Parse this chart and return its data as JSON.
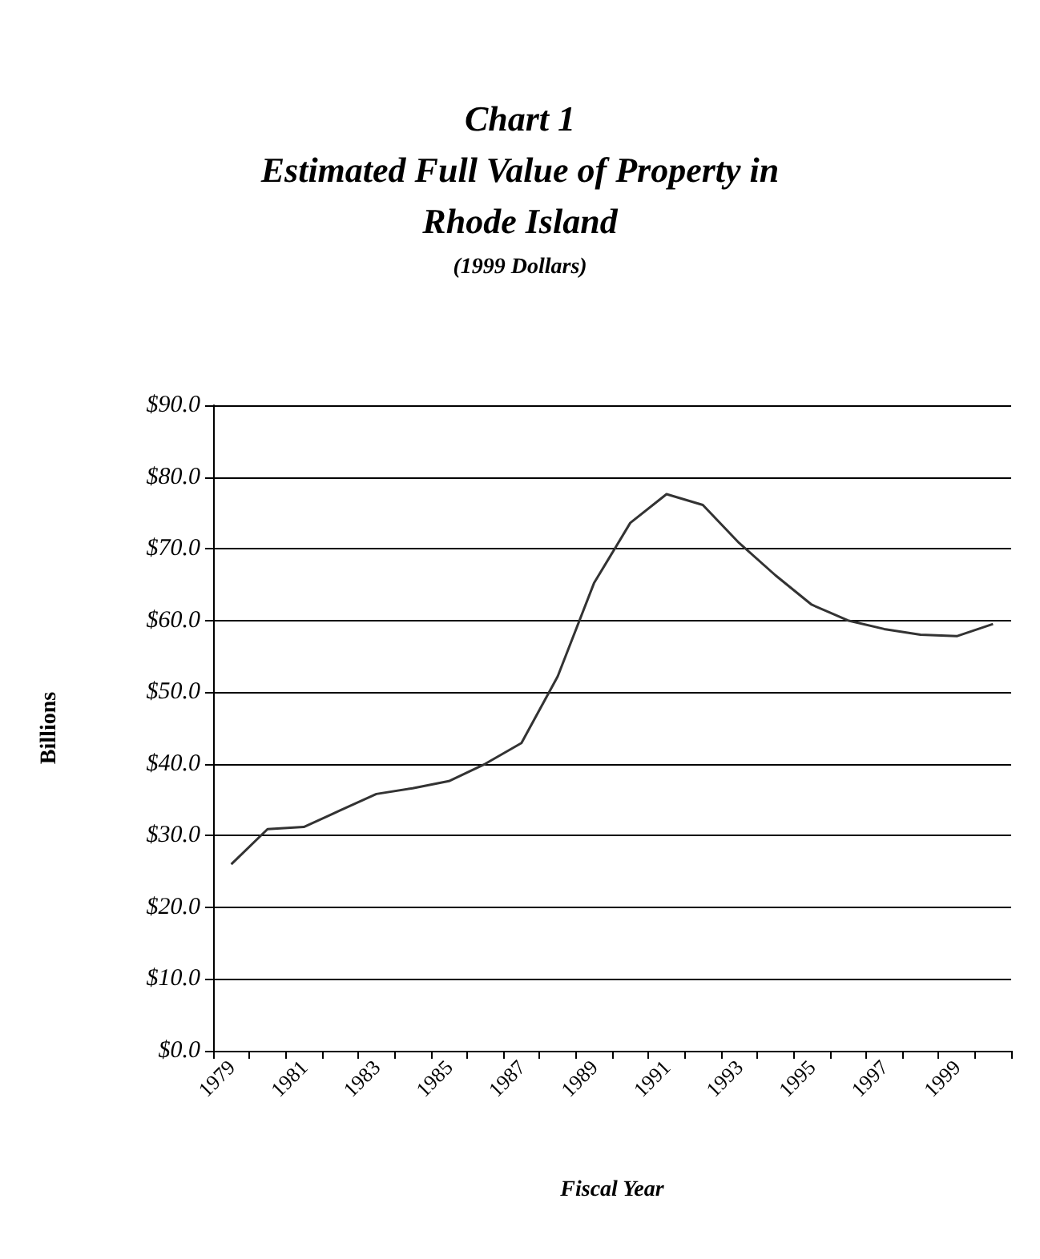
{
  "chart_data": {
    "type": "line",
    "title": "Chart 1\nEstimated Full Value of Property in\nRhode Island",
    "subtitle": "(1999 Dollars)",
    "xlabel": "Fiscal Year",
    "ylabel": "Billions",
    "categories": [
      "1979",
      null,
      "1981",
      null,
      "1983",
      null,
      "1985",
      null,
      "1987",
      null,
      "1989",
      null,
      "1991",
      null,
      "1993",
      null,
      "1995",
      null,
      "1997",
      null,
      "1999",
      null
    ],
    "series": [
      {
        "color": "#333333",
        "values": [
          26.0,
          30.9,
          31.2,
          33.5,
          35.8,
          36.6,
          37.6,
          40.0,
          42.9,
          52.2,
          65.2,
          73.6,
          77.6,
          76.1,
          70.8,
          66.3,
          62.2,
          60.0,
          58.8,
          58.0,
          57.8,
          59.5
        ]
      }
    ],
    "ylim": [
      0,
      90
    ],
    "yticks": [
      {
        "value": 0,
        "label": "$0.0"
      },
      {
        "value": 10,
        "label": "$10.0"
      },
      {
        "value": 20,
        "label": "$20.0"
      },
      {
        "value": 30,
        "label": "$30.0"
      },
      {
        "value": 40,
        "label": "$40.0"
      },
      {
        "value": 50,
        "label": "$50.0"
      },
      {
        "value": 60,
        "label": "$60.0"
      },
      {
        "value": 70,
        "label": "$70.0"
      },
      {
        "value": 80,
        "label": "$80.0"
      },
      {
        "value": 90,
        "label": "$90.0"
      }
    ],
    "grid": "y",
    "marker": "none",
    "line_style": "solid"
  }
}
